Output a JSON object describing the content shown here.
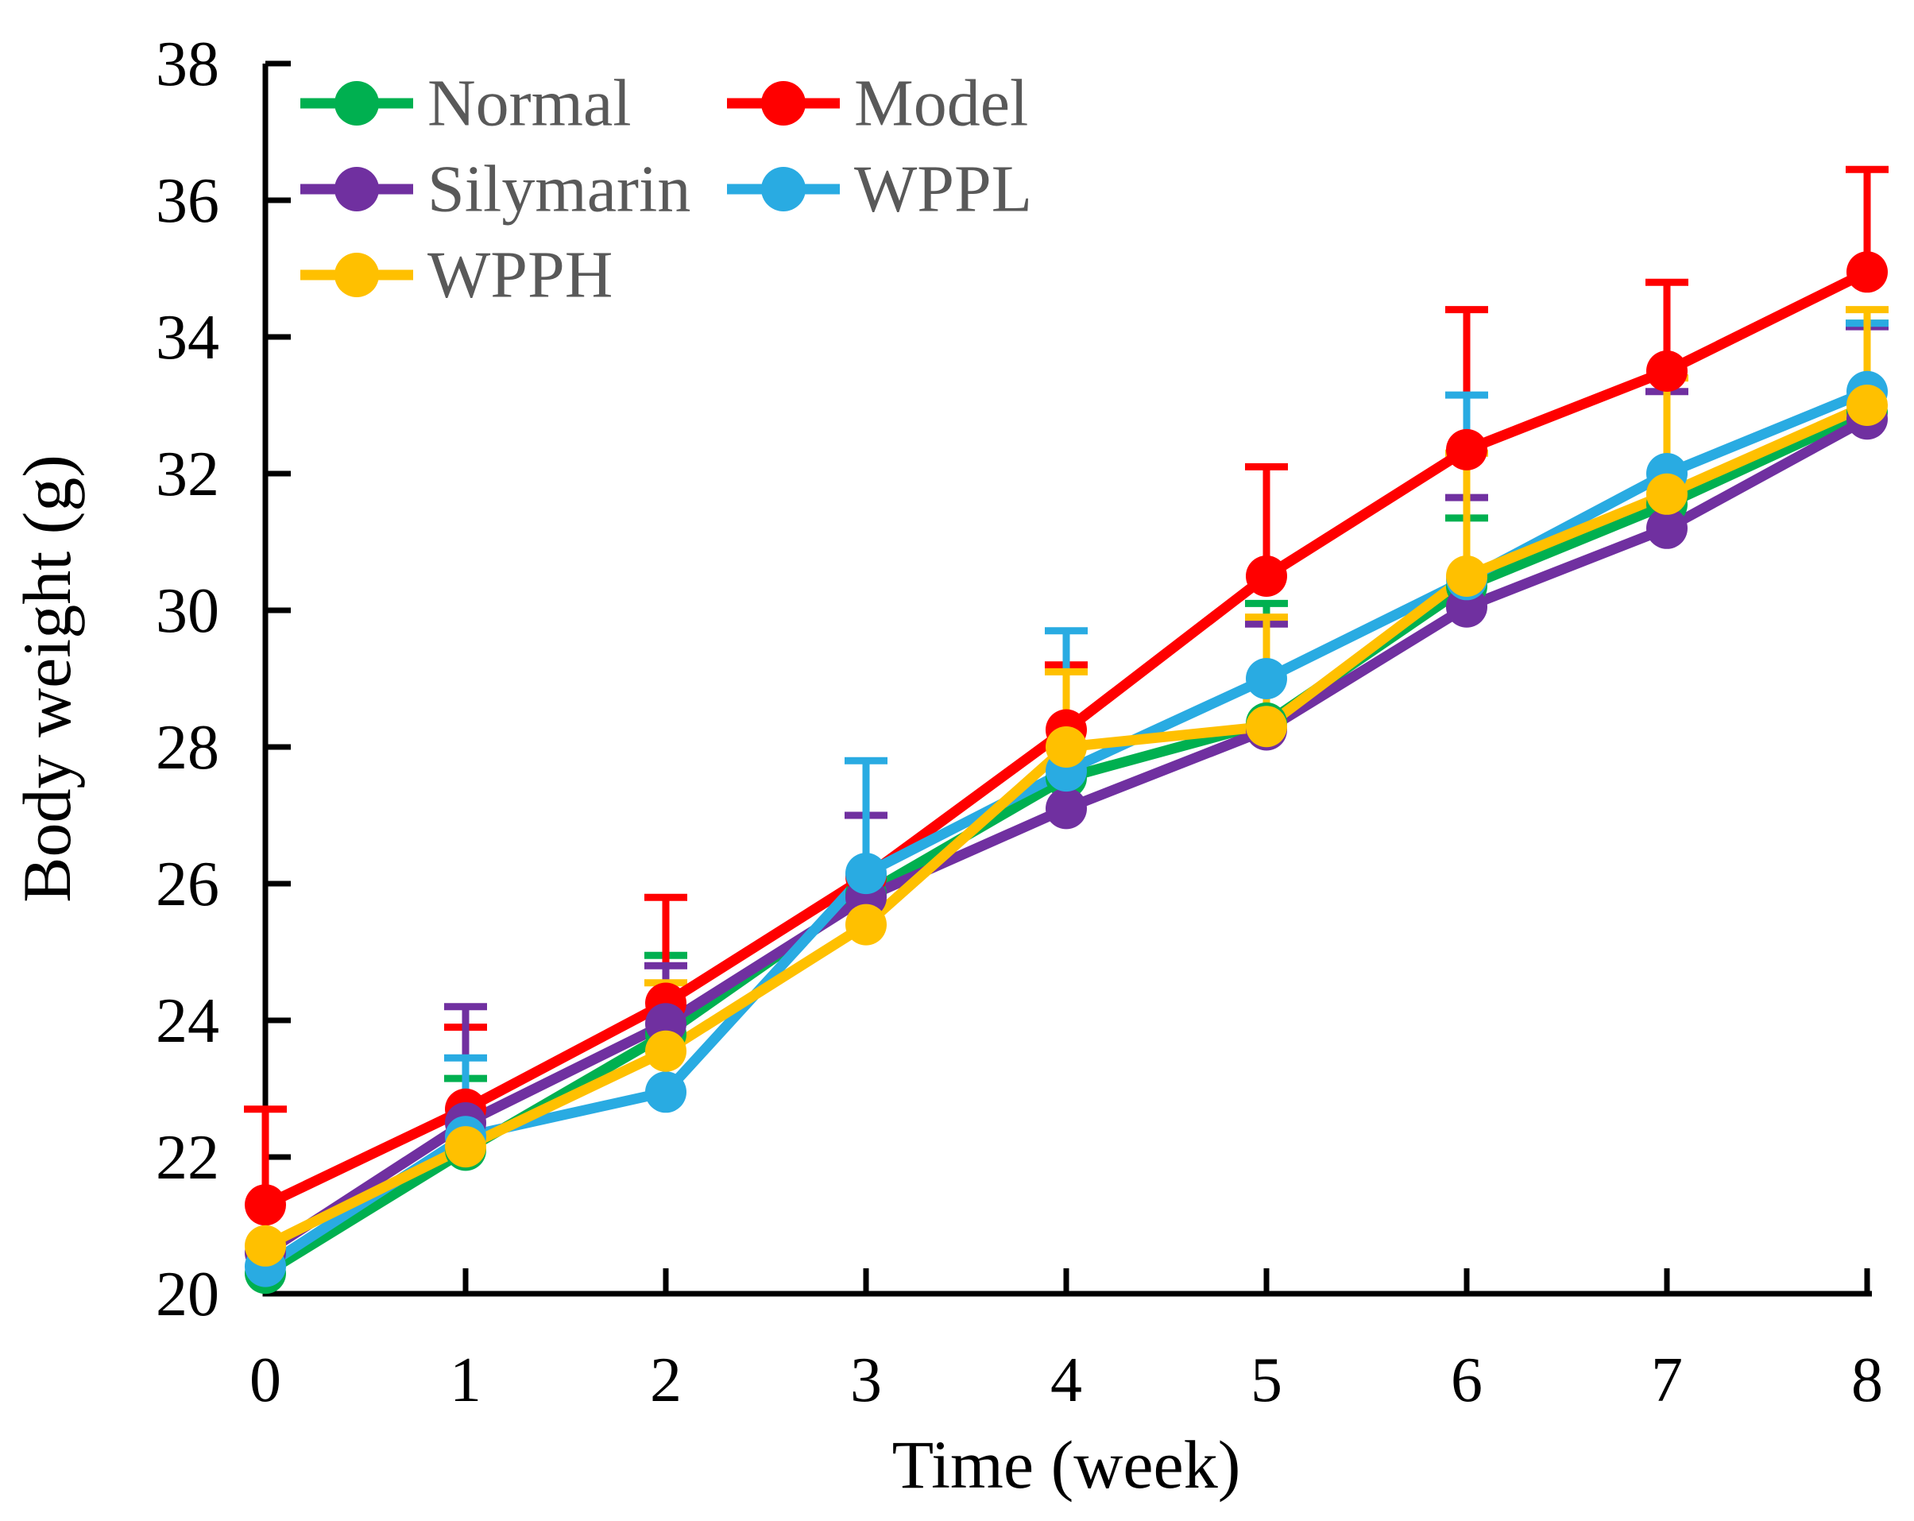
{
  "figure_description": "Line chart of mouse body weight over 8 weeks for five experimental groups with upward error bars",
  "text_color": "#000000",
  "legend_text_color": "#595959",
  "axis_color": "#000000",
  "chart_data": {
    "type": "line",
    "title": "",
    "xlabel": "Time (week)",
    "ylabel": "Body weight (g)",
    "x": [
      0,
      1,
      2,
      3,
      4,
      5,
      6,
      7,
      8
    ],
    "xlim": [
      0,
      8
    ],
    "ylim": [
      20,
      38
    ],
    "xticks": [
      0,
      1,
      2,
      3,
      4,
      5,
      6,
      7,
      8
    ],
    "yticks": [
      20,
      22,
      24,
      26,
      28,
      30,
      32,
      34,
      36,
      38
    ],
    "grid": false,
    "legend_position": "upper-left-inside-two-columns",
    "legend_order": [
      "Normal",
      "Model",
      "Silymarin",
      "WPPL",
      "WPPH"
    ],
    "marker": "circle",
    "error_bars": "upper-with-caps",
    "series": [
      {
        "name": "Normal",
        "color": "#00B050",
        "values": [
          20.3,
          22.1,
          23.8,
          25.85,
          27.55,
          28.35,
          30.35,
          31.55,
          32.9
        ],
        "err_up": [
          0,
          1.05,
          1.15,
          0,
          0,
          1.75,
          1.0,
          0,
          1.3
        ]
      },
      {
        "name": "Model",
        "color": "#FF0000",
        "values": [
          21.3,
          22.7,
          24.25,
          26.1,
          28.25,
          30.5,
          32.35,
          33.5,
          34.95
        ],
        "err_up": [
          1.4,
          1.2,
          1.55,
          0.9,
          0.95,
          1.6,
          2.05,
          1.3,
          1.5
        ]
      },
      {
        "name": "Silymarin",
        "color": "#7030A0",
        "values": [
          20.6,
          22.5,
          23.95,
          25.8,
          27.1,
          28.25,
          30.05,
          31.2,
          32.8
        ],
        "err_up": [
          0,
          1.7,
          0.85,
          1.2,
          0,
          1.55,
          1.6,
          2.0,
          1.35
        ]
      },
      {
        "name": "WPPL",
        "color": "#29ABE2",
        "values": [
          20.4,
          22.3,
          22.95,
          26.15,
          27.65,
          29.0,
          30.45,
          32.0,
          33.2
        ],
        "err_up": [
          0,
          1.15,
          0,
          1.65,
          2.05,
          0,
          2.7,
          0,
          1.0
        ]
      },
      {
        "name": "WPPH",
        "color": "#FFC000",
        "values": [
          20.7,
          22.15,
          23.55,
          25.4,
          28.0,
          28.3,
          30.5,
          31.7,
          33.0
        ],
        "err_up": [
          0,
          0,
          1.0,
          0,
          1.1,
          1.6,
          1.8,
          1.7,
          1.4
        ]
      }
    ]
  }
}
